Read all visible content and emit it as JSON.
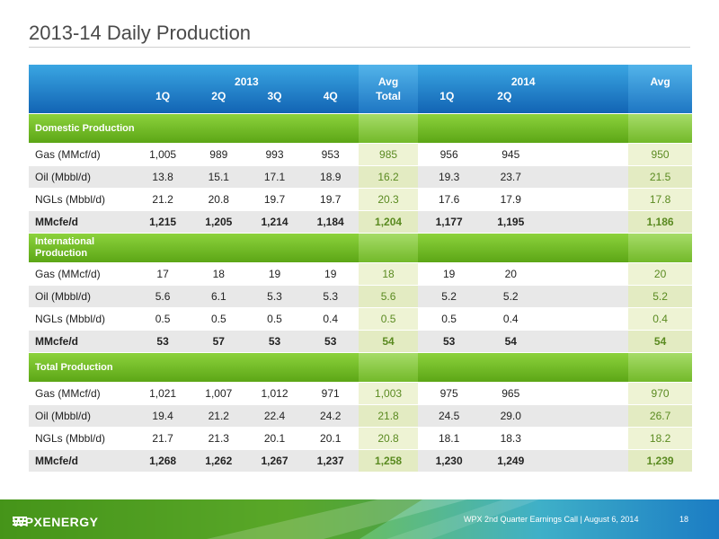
{
  "title": "2013-14 Daily Production",
  "header": {
    "year1": "2013",
    "year2": "2014",
    "avg1_top": "Avg",
    "avg1_bottom": "Total",
    "avg2": "Avg",
    "q1": "1Q",
    "q2": "2Q",
    "q3": "3Q",
    "q4": "4Q",
    "q2014_1": "1Q",
    "q2014_2": "2Q"
  },
  "sections": [
    {
      "title": "Domestic Production",
      "rows": [
        {
          "label": "Gas (MMcf/d)",
          "v": [
            "1,005",
            "989",
            "993",
            "953",
            "985",
            "956",
            "945",
            "",
            "950"
          ],
          "bold": false
        },
        {
          "label": "Oil (Mbbl/d)",
          "v": [
            "13.8",
            "15.1",
            "17.1",
            "18.9",
            "16.2",
            "19.3",
            "23.7",
            "",
            "21.5"
          ],
          "bold": false
        },
        {
          "label": "NGLs (Mbbl/d)",
          "v": [
            "21.2",
            "20.8",
            "19.7",
            "19.7",
            "20.3",
            "17.6",
            "17.9",
            "",
            "17.8"
          ],
          "bold": false
        },
        {
          "label": "MMcfe/d",
          "v": [
            "1,215",
            "1,205",
            "1,214",
            "1,184",
            "1,204",
            "1,177",
            "1,195",
            "",
            "1,186"
          ],
          "bold": true
        }
      ]
    },
    {
      "title": "International Production",
      "rows": [
        {
          "label": "Gas (MMcf/d)",
          "v": [
            "17",
            "18",
            "19",
            "19",
            "18",
            "19",
            "20",
            "",
            "20"
          ],
          "bold": false
        },
        {
          "label": "Oil (Mbbl/d)",
          "v": [
            "5.6",
            "6.1",
            "5.3",
            "5.3",
            "5.6",
            "5.2",
            "5.2",
            "",
            "5.2"
          ],
          "bold": false
        },
        {
          "label": "NGLs (Mbbl/d)",
          "v": [
            "0.5",
            "0.5",
            "0.5",
            "0.4",
            "0.5",
            "0.5",
            "0.4",
            "",
            "0.4"
          ],
          "bold": false
        },
        {
          "label": "MMcfe/d",
          "v": [
            "53",
            "57",
            "53",
            "53",
            "54",
            "53",
            "54",
            "",
            "54"
          ],
          "bold": true
        }
      ]
    },
    {
      "title": "Total Production",
      "rows": [
        {
          "label": "Gas (MMcf/d)",
          "v": [
            "1,021",
            "1,007",
            "1,012",
            "971",
            "1,003",
            "975",
            "965",
            "",
            "970"
          ],
          "bold": false
        },
        {
          "label": "Oil (Mbbl/d)",
          "v": [
            "19.4",
            "21.2",
            "22.4",
            "24.2",
            "21.8",
            "24.5",
            "29.0",
            "",
            "26.7"
          ],
          "bold": false
        },
        {
          "label": "NGLs (Mbbl/d)",
          "v": [
            "21.7",
            "21.3",
            "20.1",
            "20.1",
            "20.8",
            "18.1",
            "18.3",
            "",
            "18.2"
          ],
          "bold": false
        },
        {
          "label": "MMcfe/d",
          "v": [
            "1,268",
            "1,262",
            "1,267",
            "1,237",
            "1,258",
            "1,230",
            "1,249",
            "",
            "1,239"
          ],
          "bold": true
        }
      ]
    }
  ],
  "footer": {
    "logo": "WPXENERGY",
    "note": "WPX 2nd Quarter Earnings Call  |  August 6, 2014",
    "page": "18"
  },
  "colors": {
    "header_blue": "#1a6fbd",
    "section_green": "#6cb524",
    "avg_text": "#5a8a20"
  }
}
